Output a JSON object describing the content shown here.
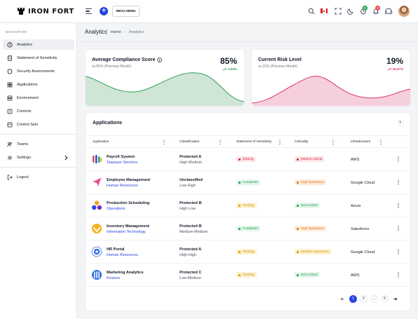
{
  "brand": {
    "name": "IRON FORT"
  },
  "topbar": {
    "mega_menu_label": "MEGA MENU",
    "notif_badge_1": "2",
    "notif_badge_2": "3",
    "accent": "#2b45e0"
  },
  "sidebar": {
    "heading": "NAVIGATION",
    "items": [
      {
        "label": "Analytics",
        "icon": "clock-icon"
      },
      {
        "label": "Statement of Sensitivity",
        "icon": "document-icon"
      },
      {
        "label": "Security Assessments",
        "icon": "shield-icon"
      },
      {
        "label": "Applications",
        "icon": "grid-icon"
      },
      {
        "label": "Environment",
        "icon": "server-icon"
      },
      {
        "label": "Controls",
        "icon": "sliders-icon"
      },
      {
        "label": "Control Sets",
        "icon": "folder-icon"
      },
      {
        "label": "Teams",
        "icon": "users-icon"
      },
      {
        "label": "Settings",
        "icon": "gear-icon"
      },
      {
        "label": "Logout",
        "icon": "logout-icon"
      }
    ]
  },
  "breadcrumb": {
    "title": "Analytics",
    "home": "Home",
    "current": "Analytics"
  },
  "kpis": [
    {
      "title": "Average Compliance Score",
      "sub": "vs 81% (Previous Month)",
      "value": "85%",
      "delta": "4.94%",
      "trend": "up",
      "color": "#2f9e5a"
    },
    {
      "title": "Current Risk Level",
      "sub": "vs 15% (Previous Month)",
      "value": "19%",
      "delta": "26.67%",
      "trend": "up",
      "color": "#d9336f"
    }
  ],
  "applications": {
    "title": "Applications",
    "columns": [
      "Application",
      "Classification",
      "Statement of Sensitivity",
      "Criticality",
      "Infrastructure"
    ],
    "rows": [
      {
        "name": "Payroll System",
        "dept": "Taxpayer Services",
        "cls": "Protected A",
        "cls2": "High-Medium",
        "sos": "Missing",
        "sos_color": "red",
        "crit": "Mission Critical",
        "crit_color": "red",
        "infra": "AWS",
        "logo": "bars-logo"
      },
      {
        "name": "Employee Management",
        "dept": "Human Resources",
        "cls": "Unclassified",
        "cls2": "Low-High",
        "sos": "Completed",
        "sos_color": "green",
        "crit": "High Importance",
        "crit_color": "orange",
        "infra": "Google Cloud",
        "logo": "paper-plane-logo"
      },
      {
        "name": "Production Scheduling",
        "dept": "Operations",
        "cls": "Protected B",
        "cls2": "High-Low",
        "sos": "Pending",
        "sos_color": "yellow",
        "crit": "Non-Critical",
        "crit_color": "green",
        "infra": "Azure",
        "logo": "dots-logo"
      },
      {
        "name": "Inventory Management",
        "dept": "Information Technology",
        "cls": "Protected B",
        "cls2": "Medium-Medium",
        "sos": "Completed",
        "sos_color": "green",
        "crit": "High Importance",
        "crit_color": "orange",
        "infra": "Salesforce",
        "logo": "circle-check-logo"
      },
      {
        "name": "HR Portal",
        "dept": "Human Resources",
        "cls": "Protected A",
        "cls2": "High-High",
        "sos": "Pending",
        "sos_color": "yellow",
        "crit": "Medium Importance",
        "crit_color": "yellow",
        "infra": "Google Cloud",
        "logo": "star-badge-logo"
      },
      {
        "name": "Marketing Analytics",
        "dept": "Finance",
        "cls": "Protected C",
        "cls2": "Low-Medium",
        "sos": "Pending",
        "sos_color": "yellow",
        "crit": "Non-Critical",
        "crit_color": "green",
        "infra": "AWS",
        "logo": "stripes-logo"
      }
    ]
  },
  "pagination": {
    "pages": [
      "1",
      "2",
      "...",
      "5"
    ],
    "current": "1"
  }
}
